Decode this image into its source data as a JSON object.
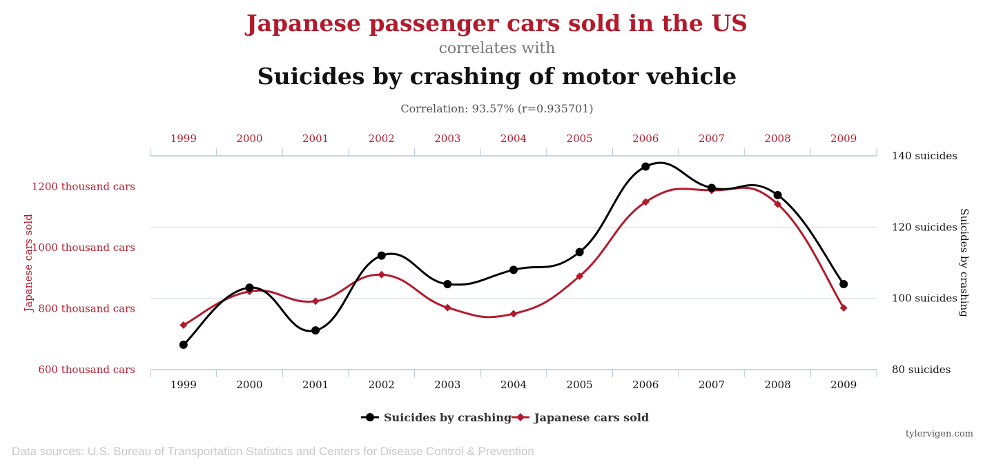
{
  "header": {
    "title_top": "Japanese passenger cars sold in the US",
    "title_mid": "correlates with",
    "title_bottom": "Suicides by crashing of motor vehicle",
    "correlation": "Correlation: 93.57% (r=0.935701)"
  },
  "footer": {
    "sources": "Data sources: U.S. Bureau of Transportation Statistics and Centers for Disease Control & Prevention",
    "credit": "tylervigen.com"
  },
  "colors": {
    "red": "#B31B2D",
    "black": "#000000",
    "grid": "#D4DCE6"
  },
  "chart_data": {
    "type": "line",
    "categories": [
      "1999",
      "2000",
      "2001",
      "2002",
      "2003",
      "2004",
      "2005",
      "2006",
      "2007",
      "2008",
      "2009"
    ],
    "series": [
      {
        "name": "Suicides by crashing",
        "axis": "right",
        "color": "#000000",
        "marker": "circle",
        "values": [
          87,
          103,
          91,
          112,
          104,
          108,
          113,
          137,
          131,
          129,
          104
        ]
      },
      {
        "name": "Japanese cars sold",
        "axis": "left",
        "color": "#B31B2D",
        "marker": "diamond",
        "values": [
          746,
          856,
          824,
          911,
          803,
          783,
          906,
          1149,
          1187,
          1142,
          802
        ]
      }
    ],
    "left_axis": {
      "label": "Japanese cars sold",
      "ylim": [
        600,
        1300
      ],
      "ticks": [
        600,
        800,
        1000,
        1200
      ],
      "tick_labels": [
        "600 thousand cars",
        "800 thousand cars",
        "1000 thousand cars",
        "1200 thousand cars"
      ]
    },
    "right_axis": {
      "label": "Suicides by crashing",
      "ylim": [
        80,
        140
      ],
      "ticks": [
        80,
        100,
        120,
        140
      ],
      "tick_labels": [
        "80 suicides",
        "100 suicides",
        "120 suicides",
        "140 suicides"
      ]
    },
    "grid": true,
    "legend_position": "bottom-center"
  }
}
